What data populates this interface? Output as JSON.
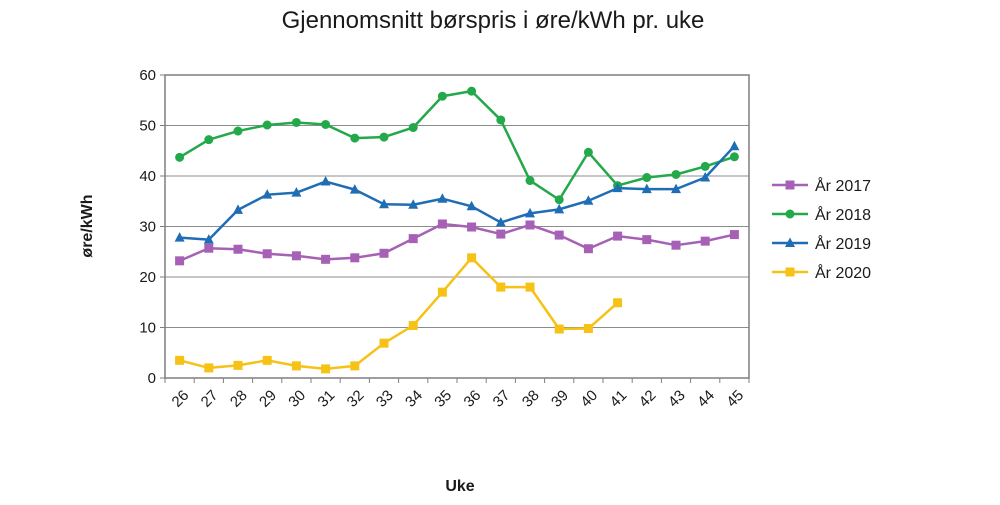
{
  "chart_data": {
    "type": "line",
    "title": "Gjennomsnitt børspris i øre/kWh pr. uke",
    "xlabel": "Uke",
    "ylabel": "øre/kWh",
    "ylim": [
      0,
      60
    ],
    "yticks": [
      "0",
      "10",
      "20",
      "30",
      "40",
      "50",
      "60"
    ],
    "categories": [
      "26",
      "27",
      "28",
      "29",
      "30",
      "31",
      "32",
      "33",
      "34",
      "35",
      "36",
      "37",
      "38",
      "39",
      "40",
      "41",
      "42",
      "43",
      "44",
      "45"
    ],
    "grid": true,
    "legend_position": "right",
    "series": [
      {
        "name": "År 2017",
        "color": "#a660b5",
        "marker": "square",
        "values": [
          23.2,
          25.7,
          25.5,
          24.6,
          24.2,
          23.5,
          23.8,
          24.7,
          27.6,
          30.5,
          29.9,
          28.5,
          30.3,
          28.3,
          25.6,
          28.1,
          27.4,
          26.3,
          27.1,
          28.4
        ]
      },
      {
        "name": "År 2018",
        "color": "#23a84a",
        "marker": "circle",
        "values": [
          43.7,
          47.2,
          48.9,
          50.1,
          50.6,
          50.2,
          47.5,
          47.7,
          49.6,
          55.8,
          56.8,
          51.1,
          39.1,
          35.3,
          44.7,
          38.1,
          39.7,
          40.3,
          41.9,
          43.8
        ]
      },
      {
        "name": "År 2019",
        "color": "#1f6db5",
        "marker": "triangle",
        "values": [
          27.8,
          27.4,
          33.3,
          36.3,
          36.7,
          38.9,
          37.3,
          34.4,
          34.3,
          35.5,
          34.0,
          30.8,
          32.6,
          33.4,
          35.1,
          37.6,
          37.4,
          37.4,
          39.7,
          45.9
        ]
      },
      {
        "name": "År 2020",
        "color": "#f5c215",
        "marker": "square",
        "values": [
          3.5,
          2.0,
          2.5,
          3.5,
          2.4,
          1.8,
          2.4,
          6.9,
          10.4,
          17.0,
          23.8,
          18.0,
          18.0,
          9.7,
          9.8,
          14.9,
          null,
          null,
          null,
          null
        ]
      }
    ]
  }
}
